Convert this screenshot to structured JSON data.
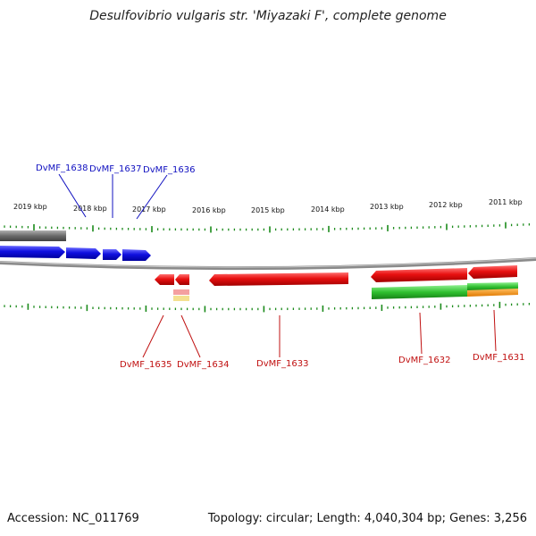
{
  "title": "Desulfovibrio vulgaris str. 'Miyazaki F', complete genome",
  "accession": "Accession: NC_011769",
  "topology": "Topology: circular; Length: 4,040,304 bp; Genes: 3,256",
  "kbp_labels": [
    "2019 kbp",
    "2018 kbp",
    "2017 kbp",
    "2016 kbp",
    "2015 kbp",
    "2014 kbp",
    "2013 kbp",
    "2012 kbp",
    "2011 kbp"
  ],
  "upper_labels": [
    "DvMF_1638",
    "DvMF_1637",
    "DvMF_1636"
  ],
  "lower_labels": [
    "DvMF_1635",
    "DvMF_1634",
    "DvMF_1633",
    "DvMF_1632",
    "DvMF_1631"
  ],
  "colors": {
    "forward": "#1010e0",
    "reverse": "#e01010",
    "green": "#30c030",
    "orange": "#f08c10",
    "tick": "#1a8a1a",
    "backbone": "#888888"
  }
}
